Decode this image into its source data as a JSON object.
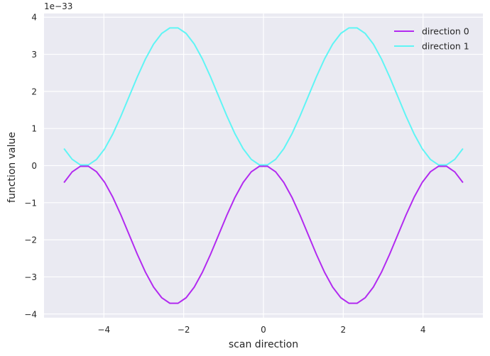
{
  "chart_data": {
    "type": "line",
    "title": "",
    "xlabel": "scan direction",
    "ylabel": "function value",
    "y_offset_text": "1e−33",
    "xlim": [
      -5.5,
      5.5
    ],
    "ylim": [
      -4.1,
      4.1
    ],
    "x_ticks": [
      -4,
      -2,
      0,
      2,
      4
    ],
    "y_ticks": [
      -4,
      -3,
      -2,
      -1,
      0,
      1,
      2,
      3,
      4
    ],
    "x_tick_labels": [
      "−4",
      "−2",
      "0",
      "2",
      "4"
    ],
    "y_tick_labels": [
      "−4",
      "−3",
      "−2",
      "−1",
      "0",
      "1",
      "2",
      "3",
      "4"
    ],
    "grid": true,
    "legend_position": "top-right",
    "x_range": [
      -5,
      5
    ],
    "point_count": 50,
    "series": [
      {
        "name": "direction 0",
        "color": "#b22af0",
        "amplitude": -3.73,
        "frequency": 0.7
      },
      {
        "name": "direction 1",
        "color": "#5ff5f5",
        "amplitude": 3.73,
        "frequency": 0.7
      }
    ]
  }
}
